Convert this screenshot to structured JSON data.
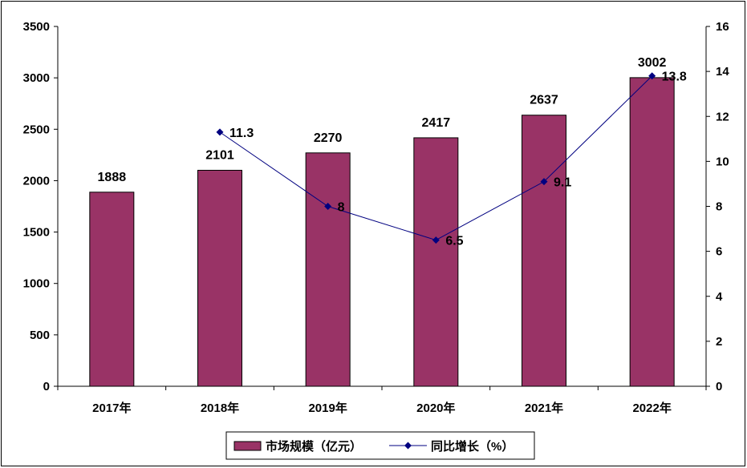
{
  "chart_data": {
    "type": "bar",
    "categories": [
      "2017年",
      "2018年",
      "2019年",
      "2020年",
      "2021年",
      "2022年"
    ],
    "series": [
      {
        "name": "市场规模（亿元）",
        "type": "bar",
        "axis": "left",
        "color": "#993366",
        "values": [
          1888,
          2101,
          2270,
          2417,
          2637,
          3002
        ]
      },
      {
        "name": "同比增长（%）",
        "type": "line",
        "axis": "right",
        "color": "#000080",
        "values": [
          null,
          11.3,
          8,
          6.5,
          9.1,
          13.8
        ],
        "labels": [
          "",
          "11.3",
          "8",
          "6.5",
          "9.1",
          "13.8"
        ]
      }
    ],
    "y_left": {
      "min": 0,
      "max": 3500,
      "step": 500
    },
    "y_right": {
      "min": 0,
      "max": 16,
      "step": 2
    },
    "legend": "bottom",
    "grid": false
  }
}
